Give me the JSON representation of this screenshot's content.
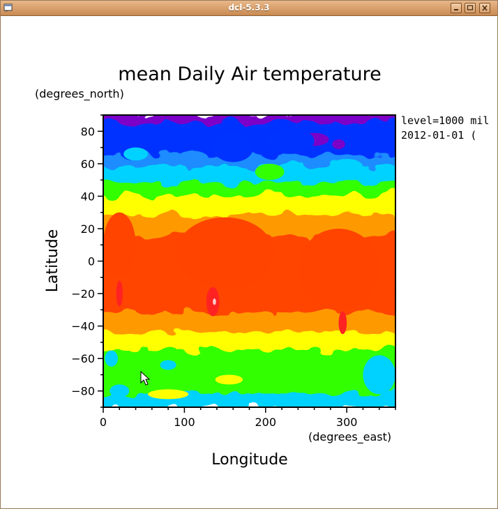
{
  "window": {
    "title": "dcl-5.3.3",
    "icons": [
      "window-menu-icon",
      "minimize-icon",
      "maximize-icon",
      "close-icon"
    ]
  },
  "chart_data": {
    "type": "heatmap",
    "title": "mean Daily Air temperature",
    "xlabel": "Longitude",
    "ylabel": "Latitude",
    "x_units": "(degrees_east)",
    "y_units": "(degrees_north)",
    "xlim": [
      0,
      360
    ],
    "ylim": [
      -90,
      90
    ],
    "x_ticks": [
      0,
      100,
      200,
      300
    ],
    "y_ticks": [
      80,
      60,
      40,
      20,
      0,
      -20,
      -40,
      -60,
      -80
    ],
    "annotation_level": "level=1000 mil",
    "annotation_time": "2012-01-01 (",
    "color_levels": [
      "#7b00c8",
      "#0033ff",
      "#1e8cff",
      "#00d2ff",
      "#33ff00",
      "#ffff00",
      "#ff9900",
      "#ff4400",
      "#ff2222",
      "#ffcccc"
    ],
    "lat_band_profile": [
      {
        "lat": 90,
        "level": 0
      },
      {
        "lat": 85,
        "level": 1
      },
      {
        "lat": 75,
        "level": 1
      },
      {
        "lat": 65,
        "level": 2
      },
      {
        "lat": 58,
        "level": 3
      },
      {
        "lat": 48,
        "level": 4
      },
      {
        "lat": 40,
        "level": 5
      },
      {
        "lat": 28,
        "level": 6
      },
      {
        "lat": 15,
        "level": 7
      },
      {
        "lat": 0,
        "level": 7
      },
      {
        "lat": -20,
        "level": 7
      },
      {
        "lat": -32,
        "level": 6
      },
      {
        "lat": -44,
        "level": 5
      },
      {
        "lat": -55,
        "level": 4
      },
      {
        "lat": -70,
        "level": 4
      },
      {
        "lat": -82,
        "level": 3
      },
      {
        "lat": -90,
        "level": 3
      }
    ]
  }
}
